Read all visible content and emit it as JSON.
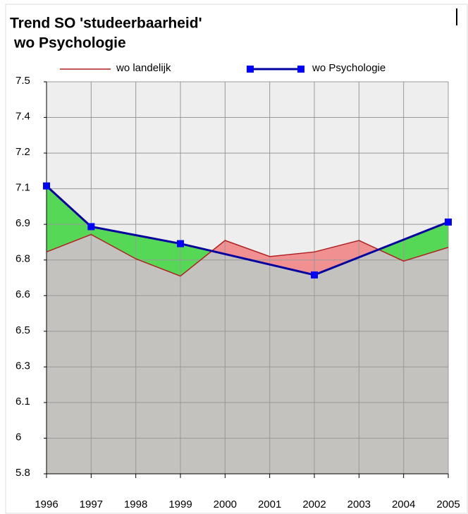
{
  "chart_data": {
    "type": "line",
    "title": "Trend SO 'studeerbaarheid'",
    "subtitle": "wo Psychologie",
    "series": [
      {
        "name": "wo landelijk",
        "color": "#b02020",
        "x": [
          1996,
          1997,
          1998,
          1999,
          2000,
          2001,
          2002,
          2003,
          2004,
          2005
        ],
        "values": [
          6.8,
          6.876,
          6.77,
          6.695,
          6.85,
          6.78,
          6.8,
          6.85,
          6.76,
          6.82
        ]
      },
      {
        "name": "wo Psychologie",
        "color": "#0000a0",
        "marker_color": "#0000ff",
        "x": [
          1996,
          1997,
          1999,
          2002,
          2005
        ],
        "values": [
          7.087,
          6.91,
          6.836,
          6.7,
          6.93
        ]
      }
    ],
    "xlim": [
      1996,
      2005
    ],
    "xticks": [
      1996,
      1997,
      1998,
      1999,
      2000,
      2001,
      2002,
      2003,
      2004,
      2005
    ],
    "ylim": [
      5.835,
      7.54
    ],
    "yticks": [
      {
        "value": 5.835,
        "label": "5.8"
      },
      {
        "value": 5.99,
        "label": "6"
      },
      {
        "value": 6.145,
        "label": "6.1"
      },
      {
        "value": 6.3,
        "label": "6.3"
      },
      {
        "value": 6.455,
        "label": "6.5"
      },
      {
        "value": 6.61,
        "label": "6.6"
      },
      {
        "value": 6.765,
        "label": "6.8"
      },
      {
        "value": 6.92,
        "label": "6.9"
      },
      {
        "value": 7.075,
        "label": "7.1"
      },
      {
        "value": 7.23,
        "label": "7.2"
      },
      {
        "value": 7.385,
        "label": "7.4"
      },
      {
        "value": 7.54,
        "label": "7.5"
      }
    ],
    "grid": true,
    "legend": "top",
    "fill_above": "#55d855",
    "fill_below": "#f09090",
    "fill_base": "#c4c2bf",
    "plot_background": "#eeeeee"
  }
}
